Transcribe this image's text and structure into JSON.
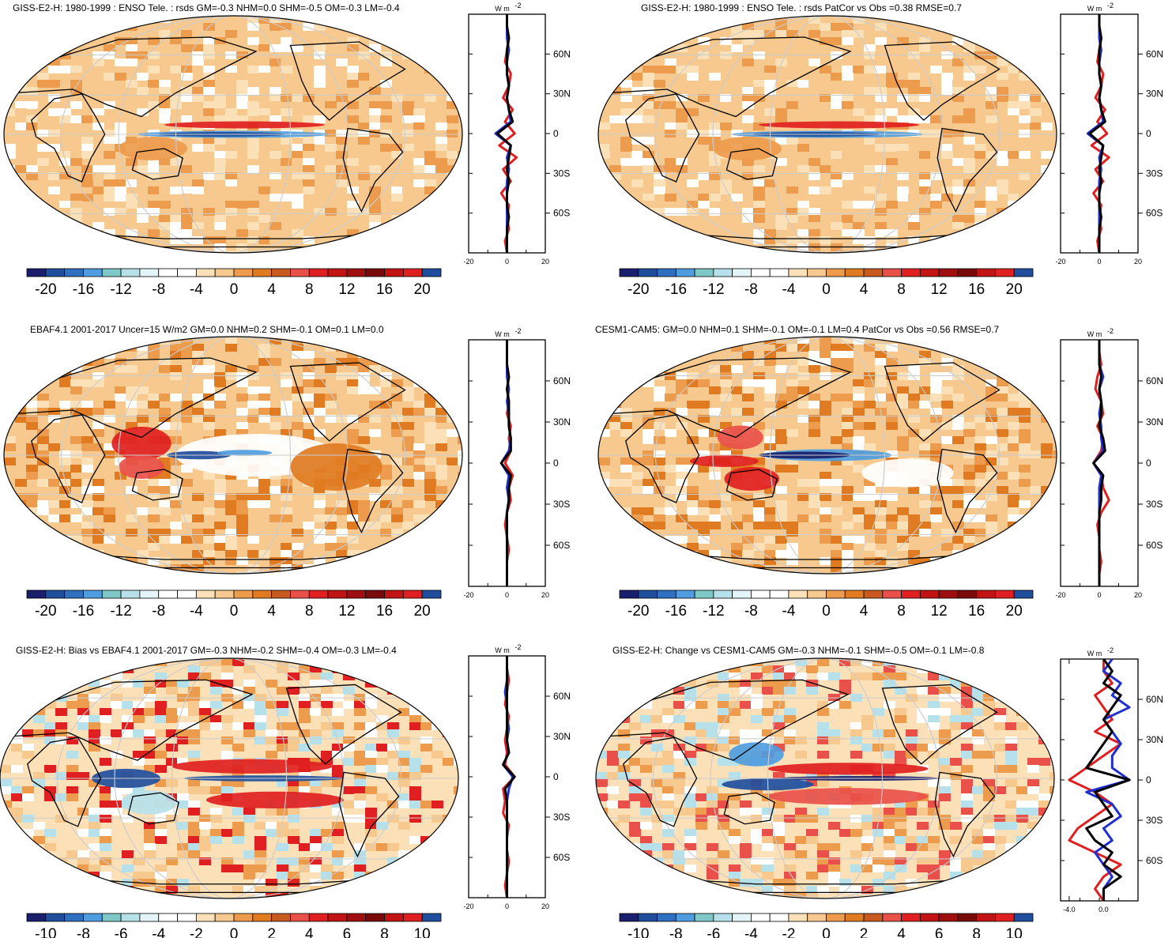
{
  "panels": [
    {
      "title": "GISS-E2-H: 1980-1999 : ENSO Tele. : rsds GM=-0.3 NHM=0.0 SHM=-0.5 OM=-0.3 LM=-0.4",
      "style": "tele",
      "colorbar_labels": [
        "-20",
        "-16",
        "-12",
        "-8",
        "-4",
        "0",
        "4",
        "8",
        "12",
        "16",
        "20"
      ],
      "zonal": {
        "unit": "W m",
        "unit_sup": "-2",
        "lat_labels": [
          "60N",
          "30N",
          "0",
          "30S",
          "60S"
        ],
        "x_ticks": [
          "-20",
          "0",
          "20"
        ],
        "xlim": [
          -20,
          20
        ],
        "series_red": [
          0,
          0,
          1,
          0,
          -1,
          2,
          1,
          -2,
          3,
          -1,
          4,
          -4,
          5,
          -2,
          2,
          -3,
          1,
          0,
          1,
          -1,
          0
        ],
        "series_blue": [
          0,
          0,
          0,
          1,
          0,
          0,
          1,
          0,
          1,
          2,
          -6,
          2,
          0,
          1,
          0,
          0,
          0,
          0,
          0,
          0,
          0
        ],
        "series_black": [
          0,
          0,
          1,
          0,
          0,
          0,
          1,
          0,
          1,
          3,
          -5,
          2,
          1,
          0,
          1,
          0,
          0,
          1,
          0,
          0,
          0
        ]
      }
    },
    {
      "title": "GISS-E2-H: 1980-1999 : ENSO Tele. : rsds PatCor vs Obs =0.38 RMSE=0.7",
      "style": "tele",
      "colorbar_labels": [
        "-20",
        "-16",
        "-12",
        "-8",
        "-4",
        "0",
        "4",
        "8",
        "12",
        "16",
        "20"
      ],
      "zonal": {
        "unit": "W m",
        "unit_sup": "-2",
        "lat_labels": [
          "60N",
          "30N",
          "0",
          "30S",
          "60S"
        ],
        "x_ticks": [
          "-20",
          "0",
          "20"
        ],
        "xlim": [
          -20,
          20
        ],
        "series_red": [
          0,
          0,
          1,
          0,
          -1,
          2,
          1,
          -2,
          3,
          -1,
          4,
          -4,
          5,
          -2,
          2,
          -3,
          1,
          0,
          1,
          -1,
          0
        ],
        "series_blue": [
          0,
          0,
          0,
          1,
          0,
          0,
          1,
          0,
          1,
          2,
          -6,
          2,
          0,
          1,
          0,
          0,
          0,
          0,
          0,
          0,
          0
        ],
        "series_black": [
          0,
          0,
          1,
          0,
          0,
          0,
          1,
          0,
          1,
          3,
          -5,
          2,
          1,
          0,
          1,
          0,
          0,
          1,
          0,
          0,
          0
        ]
      }
    },
    {
      "title": "EBAF4.1 2001-2017 Uncer=15 W/m2 GM=0.0 NHM=0.2 SHM=-0.1 OM=0.1 LM=0.0",
      "style": "obs",
      "colorbar_labels": [
        "-20",
        "-16",
        "-12",
        "-8",
        "-4",
        "0",
        "4",
        "8",
        "12",
        "16",
        "20"
      ],
      "zonal": {
        "unit": "W m",
        "unit_sup": "-2",
        "lat_labels": [
          "60N",
          "30N",
          "0",
          "30S",
          "60S"
        ],
        "x_ticks": [
          "-20",
          "0",
          "20"
        ],
        "xlim": [
          -20,
          20
        ],
        "series_red": [
          0,
          0,
          0,
          1,
          0,
          1,
          0,
          2,
          1,
          2,
          -1,
          3,
          1,
          2,
          0,
          -1,
          0,
          1,
          0,
          0,
          0
        ],
        "series_blue": [
          0,
          0,
          0,
          0,
          1,
          0,
          1,
          1,
          2,
          1,
          -3,
          1,
          0,
          1,
          0,
          0,
          0,
          0,
          0,
          0,
          0
        ],
        "series_black": [
          0,
          0,
          0,
          1,
          0,
          1,
          1,
          1,
          2,
          2,
          -3,
          2,
          1,
          1,
          0,
          0,
          0,
          0,
          0,
          0,
          0
        ]
      }
    },
    {
      "title": "CESM1-CAM5: GM=0.0 NHM=0.1 SHM=-0.1 OM=-0.1 LM=0.4 PatCor vs Obs =0.56 RMSE=0.7",
      "style": "cesm",
      "colorbar_labels": [
        "-20",
        "-16",
        "-12",
        "-8",
        "-4",
        "0",
        "4",
        "8",
        "12",
        "16",
        "20"
      ],
      "zonal": {
        "unit": "W m",
        "unit_sup": "-2",
        "lat_labels": [
          "60N",
          "30N",
          "0",
          "30S",
          "60S"
        ],
        "x_ticks": [
          "-20",
          "0",
          "20"
        ],
        "xlim": [
          -20,
          20
        ],
        "series_red": [
          0,
          0,
          1,
          -1,
          -2,
          1,
          2,
          -1,
          2,
          1,
          -3,
          1,
          2,
          5,
          1,
          -1,
          0,
          0,
          1,
          0,
          0
        ],
        "series_blue": [
          0,
          0,
          0,
          2,
          0,
          1,
          0,
          1,
          1,
          2,
          -3,
          1,
          0,
          0,
          0,
          0,
          0,
          0,
          0,
          0,
          0
        ],
        "series_black": [
          0,
          0,
          0,
          1,
          0,
          1,
          1,
          0,
          2,
          3,
          -3,
          2,
          1,
          1,
          0,
          0,
          0,
          0,
          0,
          0,
          0
        ]
      }
    },
    {
      "title": "GISS-E2-H: Bias vs EBAF4.1 2001-2017 GM=-0.3 NHM=-0.2 SHM=-0.4 OM=-0.3 LM=-0.4",
      "style": "bias",
      "colorbar_labels": [
        "-10",
        "-8",
        "-6",
        "-4",
        "-2",
        "0",
        "2",
        "4",
        "6",
        "8",
        "10"
      ],
      "zonal": {
        "unit": "W m",
        "unit_sup": "-2",
        "lat_labels": [
          "60N",
          "30N",
          "0",
          "30S",
          "60S"
        ],
        "x_ticks": [
          "-20",
          "0",
          "20"
        ],
        "xlim": [
          -20,
          20
        ],
        "series_red": [
          0,
          0,
          1,
          0,
          -1,
          1,
          0,
          -1,
          0,
          -1,
          4,
          -2,
          -1,
          -2,
          1,
          0,
          0,
          1,
          0,
          -1,
          0
        ],
        "series_blue": [
          0,
          0,
          0,
          -1,
          0,
          0,
          1,
          0,
          1,
          -2,
          3,
          1,
          0,
          0,
          0,
          0,
          0,
          0,
          0,
          0,
          0
        ],
        "series_black": [
          0,
          0,
          0,
          0,
          0,
          0,
          0,
          0,
          1,
          -2,
          4,
          -1,
          0,
          0,
          0,
          0,
          0,
          0,
          0,
          0,
          0
        ]
      }
    },
    {
      "title": "GISS-E2-H: Change vs CESM1-CAM5 GM=-0.3 NHM=-0.1 SHM=-0.5 OM=-0.1 LM=-0.8",
      "style": "change",
      "colorbar_labels": [
        "-10",
        "-8",
        "-6",
        "-4",
        "-2",
        "0",
        "2",
        "4",
        "6",
        "8",
        "10"
      ],
      "zonal": {
        "unit": "W m",
        "unit_sup": "-2",
        "lat_labels": [
          "60N",
          "30N",
          "0",
          "30S",
          "60S"
        ],
        "x_ticks": [
          "-4.0",
          "0.0"
        ],
        "xlim": [
          -5,
          4
        ],
        "series_red": [
          0,
          0,
          1,
          -1,
          0,
          1,
          -1,
          2,
          0,
          -2,
          -4,
          -1,
          1,
          -1,
          -3,
          -4,
          -1,
          2,
          0,
          -1,
          0
        ],
        "series_blue": [
          1,
          0,
          2,
          1,
          3,
          0,
          1,
          2,
          1,
          1,
          3,
          -2,
          1,
          2,
          0,
          1,
          -1,
          0,
          1,
          0,
          0
        ],
        "series_black": [
          0,
          1,
          0,
          2,
          1,
          0,
          1,
          0,
          -1,
          -2,
          3,
          -1,
          0,
          1,
          -2,
          -1,
          1,
          0,
          2,
          0,
          0
        ]
      }
    }
  ],
  "colors": {
    "palette": [
      "#1a1f6d",
      "#1f4e9c",
      "#2f6fbf",
      "#4f9de0",
      "#7ec8c8",
      "#b6e1ea",
      "#e3f5f8",
      "#ffffff",
      "#ffffff",
      "#fbe0b8",
      "#f7c98e",
      "#ed9b4d",
      "#e07b22",
      "#c85a1f",
      "#e9504a",
      "#e01f20",
      "#c21414",
      "#a00f0f",
      "#7a0a0a",
      "#c21414",
      "#e01f20",
      "#1f4e9c"
    ],
    "land": "#000000"
  }
}
